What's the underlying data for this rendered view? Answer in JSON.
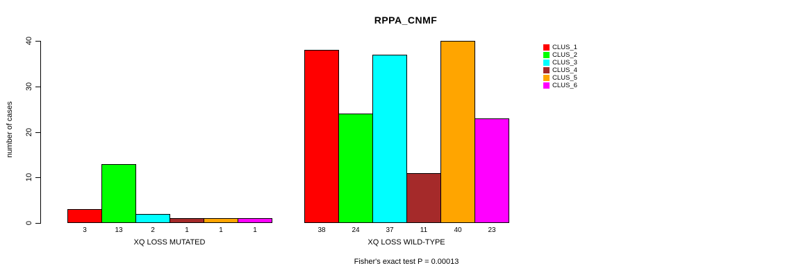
{
  "chart_data": {
    "type": "bar",
    "title": "RPPA_CNMF",
    "ylabel": "number of cases",
    "xlabel": "",
    "ylim": [
      0,
      40
    ],
    "yticks": [
      0,
      10,
      20,
      30,
      40
    ],
    "grid": false,
    "legend_position": "right",
    "series": [
      {
        "name": "CLUS_1",
        "color": "#FF0000"
      },
      {
        "name": "CLUS_2",
        "color": "#00FF00"
      },
      {
        "name": "CLUS_3",
        "color": "#00FFFF"
      },
      {
        "name": "CLUS_4",
        "color": "#A52A2A"
      },
      {
        "name": "CLUS_5",
        "color": "#FFA500"
      },
      {
        "name": "CLUS_6",
        "color": "#FF00FF"
      }
    ],
    "groups": [
      {
        "label": "XQ LOSS MUTATED",
        "values": [
          3,
          13,
          2,
          1,
          1,
          1
        ]
      },
      {
        "label": "XQ LOSS WILD-TYPE",
        "values": [
          38,
          24,
          37,
          11,
          40,
          23
        ]
      }
    ],
    "bar_value_labels_shown": true,
    "annotation": "Fisher's exact test P = 0.00013"
  }
}
